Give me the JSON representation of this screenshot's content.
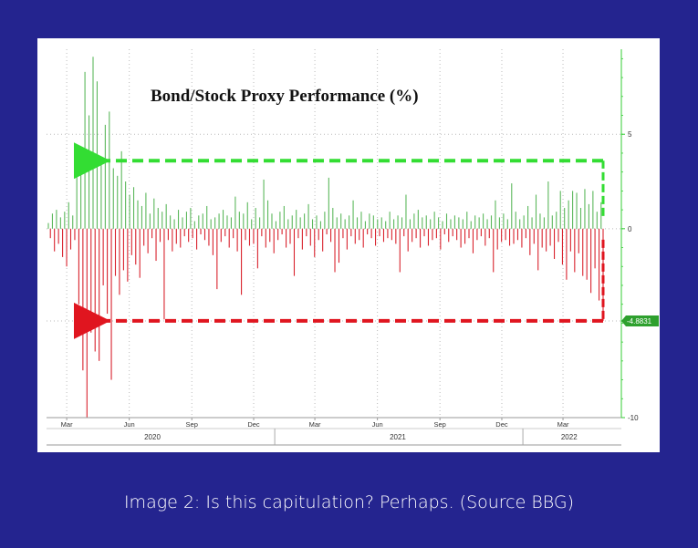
{
  "caption": "Image 2: Is this capitulation? Perhaps. (Source BBG)",
  "colors": {
    "background": "#24248f",
    "positive": "#5cb85c",
    "negative": "#d9232e",
    "axis_green": "#33cc33",
    "arrow_green": "#33dd33",
    "arrow_red": "#e0151f"
  },
  "chart_data": {
    "type": "bar",
    "title": "Bond/Stock Proxy Performance (%)",
    "xlabel": "",
    "ylabel": "",
    "ylim": [
      -10,
      9.5
    ],
    "yticks": [
      5,
      0,
      -10
    ],
    "last_value_label": "-4.8831",
    "last_value": -4.8831,
    "reference_lines": [
      {
        "value": 3.6,
        "color": "green",
        "style": "dashed-arrow"
      },
      {
        "value": -4.88,
        "color": "red",
        "style": "dashed-arrow"
      }
    ],
    "grid": true,
    "x_month_ticks": [
      "Mar",
      "Jun",
      "Sep",
      "Dec",
      "Mar",
      "Jun",
      "Sep",
      "Dec",
      "Mar"
    ],
    "x_year_labels": [
      "2020",
      "2021",
      "2022"
    ],
    "date_range": [
      "2020-02-03",
      "2022-04-29"
    ],
    "series": [
      {
        "values": [
          0.3,
          -0.5,
          0.8,
          -1.2,
          1.0,
          -0.8,
          0.6,
          -1.5,
          0.9,
          -2.0,
          1.4,
          -1.1,
          0.7,
          -0.6,
          4.2,
          -4.0,
          3.0,
          -7.5,
          8.3,
          -10.0,
          6.0,
          -5.5,
          9.1,
          -6.5,
          7.8,
          -7.0,
          3.5,
          -3.0,
          5.5,
          -4.5,
          6.2,
          -8.0,
          3.2,
          -2.5,
          2.8,
          -3.5,
          4.1,
          -2.2,
          2.5,
          -2.8,
          1.8,
          -1.4,
          2.2,
          -1.9,
          1.5,
          -2.6,
          1.2,
          -0.9,
          1.9,
          -1.3,
          0.8,
          -0.5,
          1.6,
          -1.7,
          1.1,
          -0.7,
          0.9,
          -4.8,
          1.3,
          -0.6,
          0.7,
          -1.2,
          0.5,
          -0.8,
          1.0,
          -1.0,
          0.6,
          -0.4,
          0.9,
          -0.7,
          1.1,
          -0.5,
          0.4,
          -1.1,
          0.7,
          -0.3,
          0.8,
          -0.6,
          1.2,
          -0.9,
          0.5,
          -1.4,
          0.6,
          -3.2,
          0.8,
          -0.7,
          1.0,
          -0.4,
          0.7,
          -1.0,
          0.6,
          -0.5,
          1.7,
          -1.2,
          0.9,
          -3.5,
          0.8,
          -0.6,
          1.4,
          -0.9,
          0.5,
          -0.8,
          1.1,
          -2.1,
          0.6,
          -0.4,
          2.6,
          -1.0,
          1.5,
          -0.7,
          0.8,
          -1.3,
          0.4,
          -0.6,
          0.9,
          -0.3,
          1.2,
          -1.0,
          0.5,
          -0.8,
          0.7,
          -2.5,
          1.0,
          -0.5,
          0.6,
          -1.1,
          0.8,
          -0.4,
          1.3,
          -0.9,
          0.5,
          -1.5,
          0.7,
          -0.6,
          0.4,
          -1.2,
          0.9,
          -0.3,
          2.7,
          -0.7,
          1.1,
          -2.3,
          0.6,
          -1.8,
          0.8,
          -0.5,
          0.5,
          -1.1,
          0.7,
          -0.4,
          1.5,
          -0.8,
          0.6,
          -0.6,
          0.9,
          -1.0,
          0.4,
          -0.3,
          0.8,
          -0.5,
          0.7,
          -0.9,
          0.5,
          -0.4,
          0.6,
          -0.7,
          0.4,
          -0.5,
          0.9,
          -0.6,
          0.5,
          -0.8,
          0.7,
          -2.3,
          0.6,
          -0.4,
          1.8,
          -1.2,
          0.5,
          -0.7,
          0.8,
          -0.5,
          1.0,
          -1.0,
          0.6,
          -0.4,
          0.7,
          -0.9,
          0.5,
          -0.6,
          0.9,
          -0.5,
          0.6,
          -1.1,
          0.4,
          -0.3,
          0.8,
          -0.7,
          0.5,
          -0.4,
          0.7,
          -0.6,
          0.6,
          -1.0,
          0.5,
          -0.8,
          0.9,
          -0.5,
          0.4,
          -1.3,
          0.7,
          -0.6,
          0.6,
          -0.4,
          0.8,
          -0.9,
          0.5,
          -0.5,
          0.7,
          -2.3,
          1.5,
          -1.1,
          0.6,
          -0.7,
          0.8,
          -0.6,
          0.5,
          -0.9,
          2.4,
          -0.8,
          0.9,
          -0.6,
          0.5,
          -1.0,
          0.7,
          -0.5,
          1.2,
          -1.4,
          0.6,
          -0.8,
          1.8,
          -2.2,
          0.8,
          -1.0,
          0.6,
          -1.2,
          2.5,
          -0.9,
          0.7,
          -1.6,
          0.9,
          -0.7,
          2.0,
          -1.9,
          1.1,
          -2.7,
          1.5,
          -1.2,
          2.0,
          -2.3,
          1.9,
          -1.3,
          1.1,
          -2.5,
          2.1,
          -2.7,
          1.3,
          -3.4,
          2.0,
          -2.1,
          0.9,
          -3.8,
          1.4,
          -4.88
        ]
      }
    ]
  }
}
